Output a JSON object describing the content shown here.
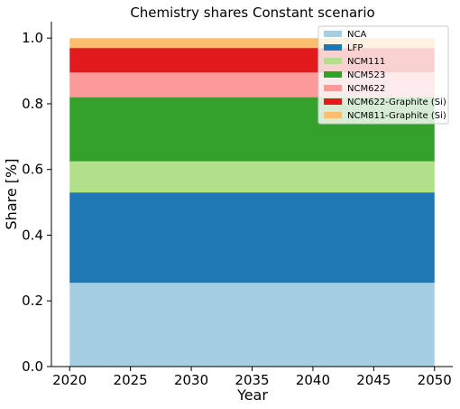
{
  "chart_data": {
    "type": "area",
    "title": "Chemistry shares Constant scenario",
    "xlabel": "Year",
    "ylabel": "Share [%]",
    "x": [
      2020,
      2050
    ],
    "xlim": [
      2018.5,
      2051.5
    ],
    "ylim": [
      0,
      1.05
    ],
    "xticks": [
      "2020",
      "2025",
      "2030",
      "2035",
      "2040",
      "2045",
      "2050"
    ],
    "yticks": [
      "0.0",
      "0.2",
      "0.4",
      "0.6",
      "0.8",
      "1.0"
    ],
    "grid": false,
    "legend_position": "top-right",
    "series": [
      {
        "name": "NCA",
        "values": [
          0.255,
          0.255
        ],
        "color": "#a6cee3"
      },
      {
        "name": "LFP",
        "values": [
          0.275,
          0.275
        ],
        "color": "#1f78b4"
      },
      {
        "name": "NCM111",
        "values": [
          0.095,
          0.095
        ],
        "color": "#b2df8a"
      },
      {
        "name": "NCM523",
        "values": [
          0.195,
          0.195
        ],
        "color": "#33a02c"
      },
      {
        "name": "NCM622",
        "values": [
          0.075,
          0.075
        ],
        "color": "#fb9a99"
      },
      {
        "name": "NCM622-Graphite (Si)",
        "values": [
          0.075,
          0.075
        ],
        "color": "#e31a1c"
      },
      {
        "name": "NCM811-Graphite (Si)",
        "values": [
          0.03,
          0.03
        ],
        "color": "#fdbf6f"
      }
    ]
  }
}
